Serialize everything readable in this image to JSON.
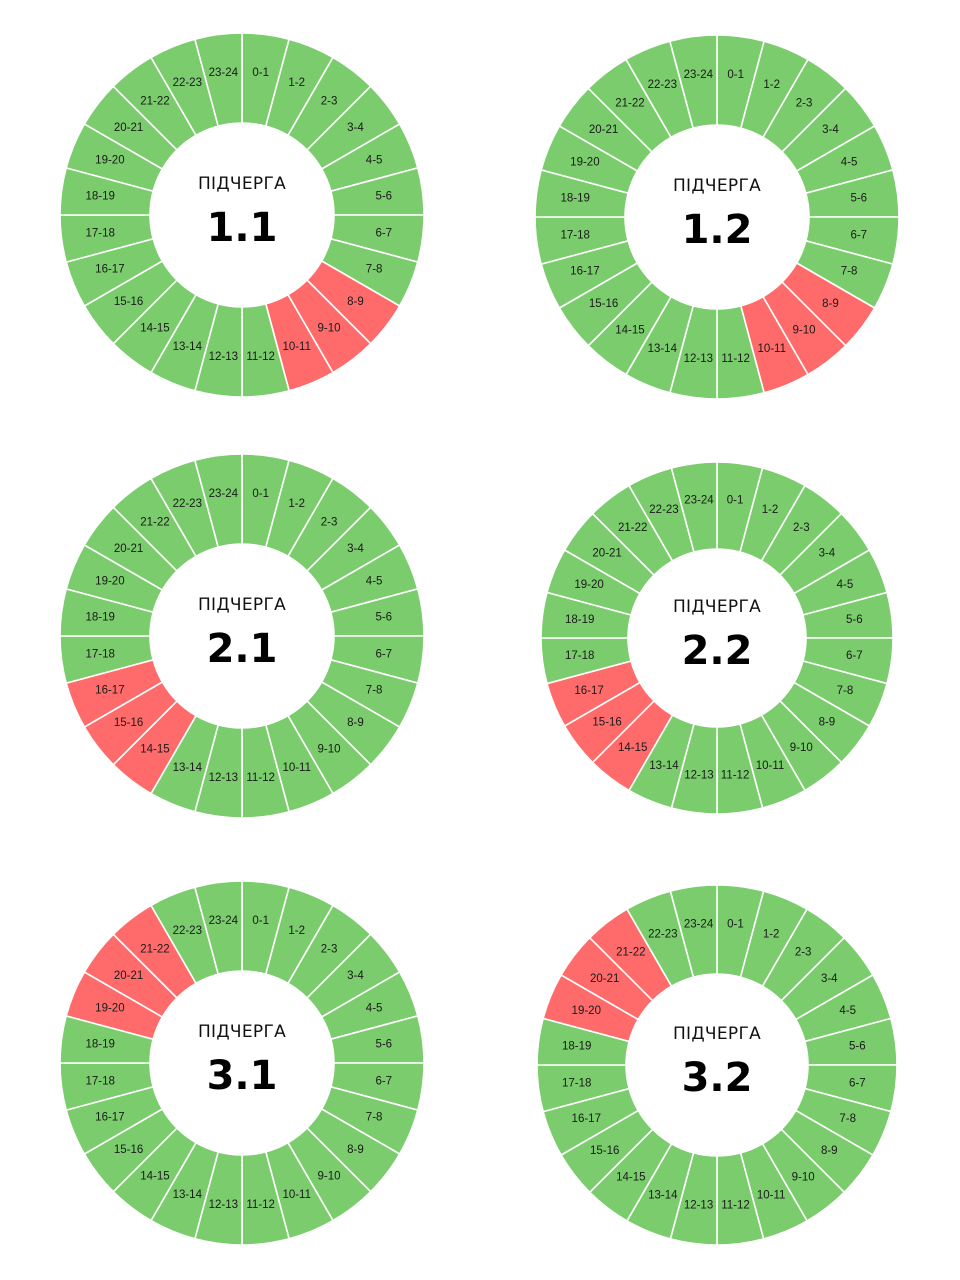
{
  "colors": {
    "power_on": "#7acc6c",
    "power_off": "#ff6b6b",
    "separator": "#ffffff",
    "center": "#ffffff"
  },
  "chart_data": [
    {
      "type": "donut",
      "center_label": "ПІДЧЕРГА",
      "center_value": "1.1",
      "segments": [
        "0-1",
        "1-2",
        "2-3",
        "3-4",
        "4-5",
        "5-6",
        "6-7",
        "7-8",
        "8-9",
        "9-10",
        "10-11",
        "11-12",
        "12-13",
        "13-14",
        "14-15",
        "15-16",
        "16-17",
        "17-18",
        "18-19",
        "19-20",
        "20-21",
        "21-22",
        "22-23",
        "23-24"
      ],
      "off_segments": [
        "8-9",
        "9-10",
        "10-11"
      ]
    },
    {
      "type": "donut",
      "center_label": "ПІДЧЕРГА",
      "center_value": "1.2",
      "segments": [
        "0-1",
        "1-2",
        "2-3",
        "3-4",
        "4-5",
        "5-6",
        "6-7",
        "7-8",
        "8-9",
        "9-10",
        "10-11",
        "11-12",
        "12-13",
        "13-14",
        "14-15",
        "15-16",
        "16-17",
        "17-18",
        "18-19",
        "19-20",
        "20-21",
        "21-22",
        "22-23",
        "23-24"
      ],
      "off_segments": [
        "8-9",
        "9-10",
        "10-11"
      ]
    },
    {
      "type": "donut",
      "center_label": "ПІДЧЕРГА",
      "center_value": "2.1",
      "segments": [
        "0-1",
        "1-2",
        "2-3",
        "3-4",
        "4-5",
        "5-6",
        "6-7",
        "7-8",
        "8-9",
        "9-10",
        "10-11",
        "11-12",
        "12-13",
        "13-14",
        "14-15",
        "15-16",
        "16-17",
        "17-18",
        "18-19",
        "19-20",
        "20-21",
        "21-22",
        "22-23",
        "23-24"
      ],
      "off_segments": [
        "14-15",
        "15-16",
        "16-17"
      ]
    },
    {
      "type": "donut",
      "center_label": "ПІДЧЕРГА",
      "center_value": "2.2",
      "segments": [
        "0-1",
        "1-2",
        "2-3",
        "3-4",
        "4-5",
        "5-6",
        "6-7",
        "7-8",
        "8-9",
        "9-10",
        "10-11",
        "11-12",
        "12-13",
        "13-14",
        "14-15",
        "15-16",
        "16-17",
        "17-18",
        "18-19",
        "19-20",
        "20-21",
        "21-22",
        "22-23",
        "23-24"
      ],
      "off_segments": [
        "14-15",
        "15-16",
        "16-17"
      ]
    },
    {
      "type": "donut",
      "center_label": "ПІДЧЕРГА",
      "center_value": "3.1",
      "segments": [
        "0-1",
        "1-2",
        "2-3",
        "3-4",
        "4-5",
        "5-6",
        "6-7",
        "7-8",
        "8-9",
        "9-10",
        "10-11",
        "11-12",
        "12-13",
        "13-14",
        "14-15",
        "15-16",
        "16-17",
        "17-18",
        "18-19",
        "19-20",
        "20-21",
        "21-22",
        "22-23",
        "23-24"
      ],
      "off_segments": [
        "19-20",
        "20-21",
        "21-22"
      ]
    },
    {
      "type": "donut",
      "center_label": "ПІДЧЕРГА",
      "center_value": "3.2",
      "segments": [
        "0-1",
        "1-2",
        "2-3",
        "3-4",
        "4-5",
        "5-6",
        "6-7",
        "7-8",
        "8-9",
        "9-10",
        "10-11",
        "11-12",
        "12-13",
        "13-14",
        "14-15",
        "15-16",
        "16-17",
        "17-18",
        "18-19",
        "19-20",
        "20-21",
        "21-22",
        "22-23",
        "23-24"
      ],
      "off_segments": [
        "19-20",
        "20-21",
        "21-22"
      ]
    }
  ]
}
